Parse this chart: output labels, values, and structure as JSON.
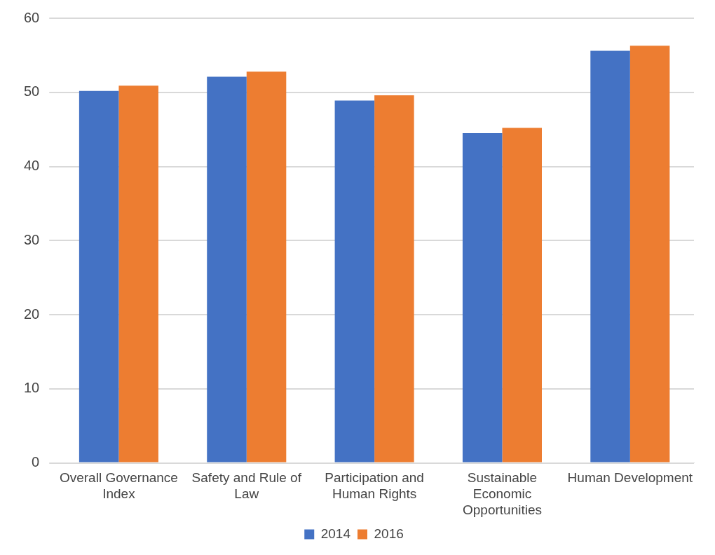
{
  "chart_data": {
    "type": "bar",
    "categories": [
      "Overall Governance Index",
      "Safety and Rule of Law",
      "Participation and Human Rights",
      "Sustainable Economic Opportunities",
      "Human Development"
    ],
    "series": [
      {
        "name": "2014",
        "color": "#4472c4",
        "values": [
          50.2,
          52.1,
          48.9,
          44.5,
          55.6
        ]
      },
      {
        "name": "2016",
        "color": "#ed7d31",
        "values": [
          50.9,
          52.8,
          49.6,
          45.2,
          56.3
        ]
      }
    ],
    "ylim": [
      0,
      60
    ],
    "yticks": [
      0,
      10,
      20,
      30,
      40,
      50,
      60
    ],
    "grid": "y",
    "legend": "bottom"
  }
}
